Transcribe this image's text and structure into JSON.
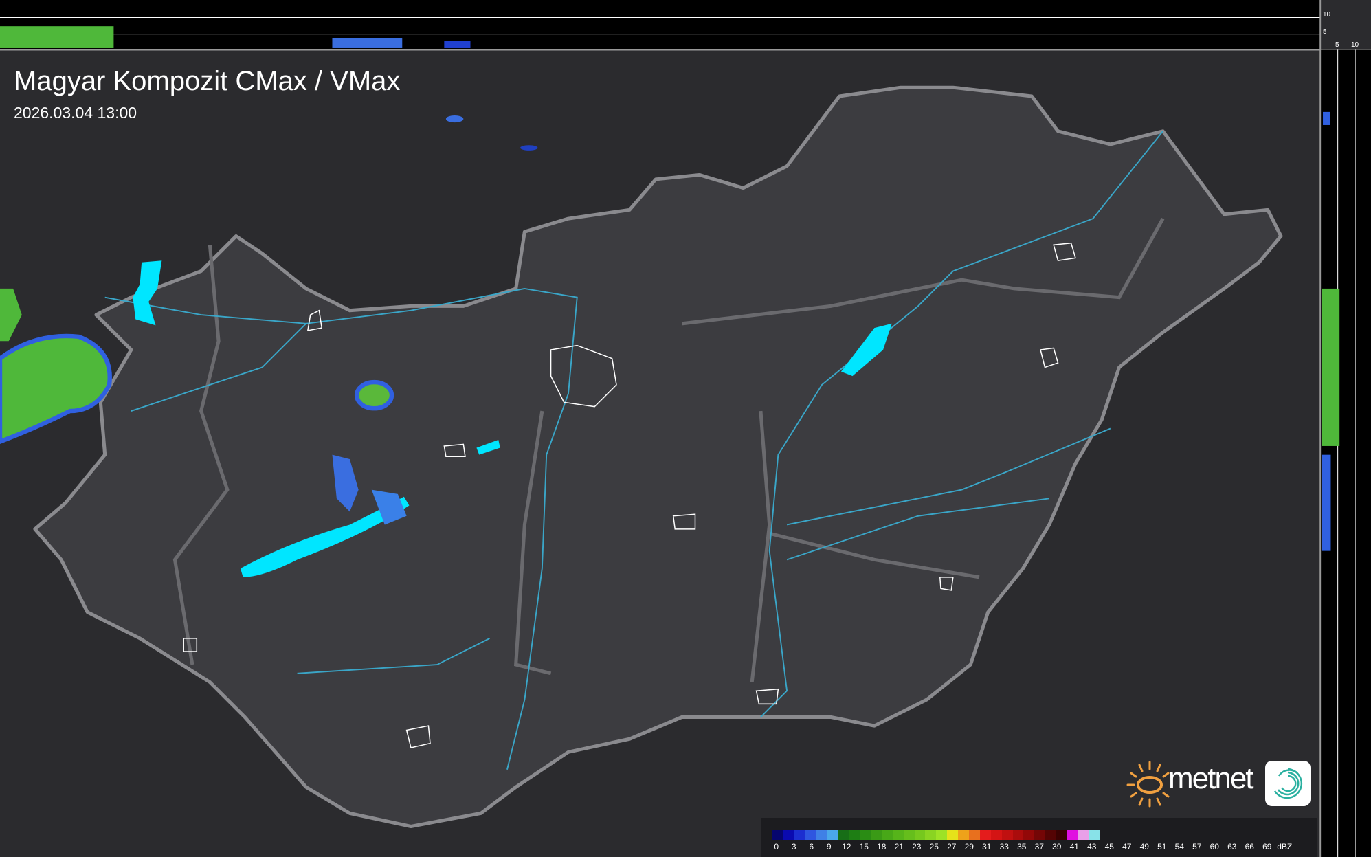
{
  "title": "Magyar Kompozit CMax / VMax",
  "timestamp": "2026.03.04 13:00",
  "cross_section": {
    "top_ticks": [
      "10",
      "5"
    ],
    "right_ticks": [
      "5",
      "10"
    ]
  },
  "legend": {
    "unit": "dBZ",
    "labels": [
      "0",
      "3",
      "6",
      "9",
      "12",
      "15",
      "18",
      "21",
      "23",
      "25",
      "27",
      "29",
      "31",
      "33",
      "35",
      "37",
      "39",
      "41",
      "43",
      "45",
      "47",
      "49",
      "51",
      "54",
      "57",
      "60",
      "63",
      "66",
      "69"
    ],
    "colors": [
      "#06066e",
      "#0a0ab0",
      "#1c2ed0",
      "#2f56e0",
      "#3f80e6",
      "#4aa8ea",
      "#176e17",
      "#1e7e14",
      "#2a8c14",
      "#3a9a16",
      "#48a818",
      "#56b41a",
      "#66be1c",
      "#76c81e",
      "#8ad422",
      "#9ee226",
      "#e6e21a",
      "#eea21a",
      "#e8701e",
      "#e41c1c",
      "#d41414",
      "#c01010",
      "#aa0c0c",
      "#920808",
      "#740606",
      "#540404",
      "#3a0202",
      "#e010e0",
      "#e8a0e8",
      "#88e2e8"
    ]
  },
  "branding": {
    "logo_text": "metnet"
  },
  "colors": {
    "background": "#2b2b2e",
    "country": "#3c3c40",
    "border": "#8a8a8e",
    "rivers": "#3aa6c8",
    "lakes": "#00e6ff"
  }
}
